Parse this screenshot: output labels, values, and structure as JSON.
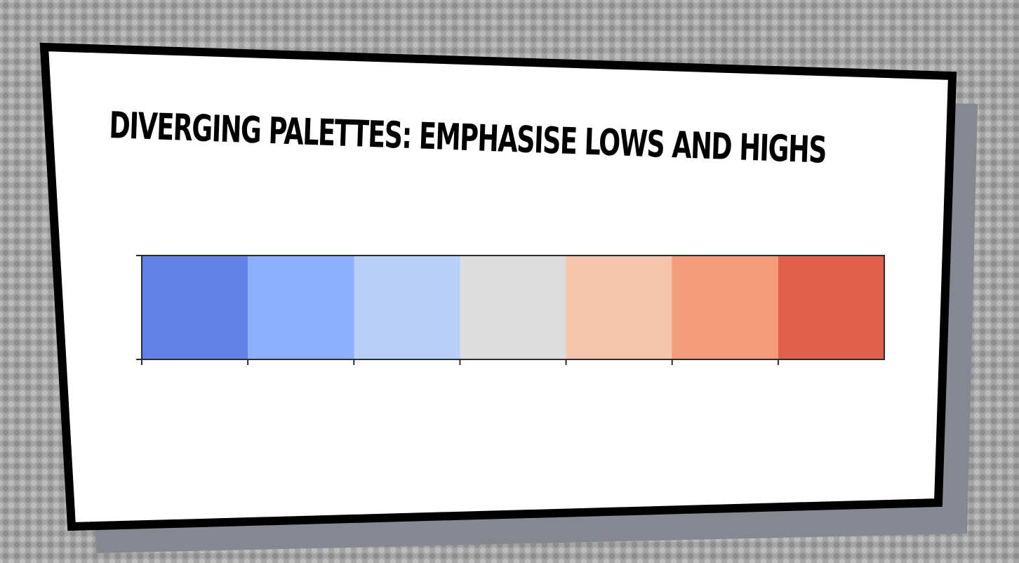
{
  "slide": {
    "title": "DIVERGING PALETTES: EMPHASISE LOWS AND HIGHS"
  },
  "palette": {
    "name": "diverging",
    "swatch_count": 7,
    "colors": [
      "#6282ea",
      "#8db0fe",
      "#b8d0f9",
      "#dddcdc",
      "#f5c4ac",
      "#f39b7a",
      "#de604d"
    ]
  },
  "theme": {
    "panel_fill": "#ffffff",
    "panel_border": "#000000",
    "shadow": "#858891",
    "background": "#a4a4a4"
  }
}
